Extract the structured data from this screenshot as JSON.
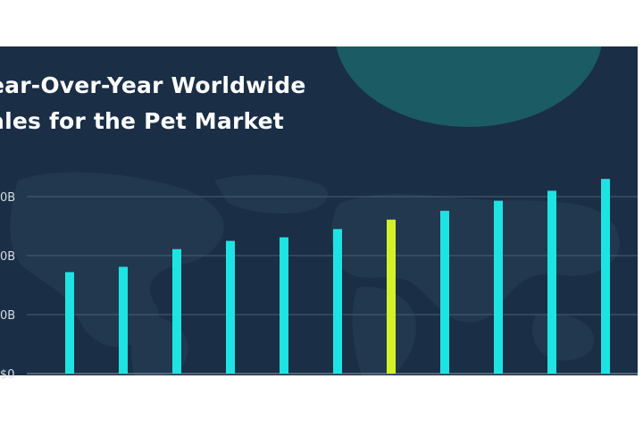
{
  "colors": {
    "background": "#1a2e45",
    "bar": "#1ee3e3",
    "highlight_bar": "#d4f02a",
    "gridline": "#4b5f76",
    "title_text": "#ffffff",
    "tick_text": "#d7dee6",
    "accent_circle": "#1b5b63"
  },
  "chart_data": {
    "type": "bar",
    "title_lines": [
      "ear-Over-Year Worldwide",
      "ales for the Pet Market"
    ],
    "xlabel": "",
    "ylabel": "",
    "y_ticks": [
      {
        "value": 0,
        "label": "$0"
      },
      {
        "value": 1,
        "label": "0B"
      },
      {
        "value": 2,
        "label": "0B"
      },
      {
        "value": 3,
        "label": "0B"
      }
    ],
    "ylim": [
      0,
      3
    ],
    "grid": true,
    "legend": "none",
    "categories": [
      "",
      "",
      "",
      "",
      "",
      "",
      "",
      "",
      "",
      "",
      ""
    ],
    "values": [
      1.72,
      1.81,
      2.11,
      2.25,
      2.31,
      2.45,
      2.61,
      2.76,
      2.93,
      3.1,
      3.3
    ],
    "highlight_index": 6
  }
}
